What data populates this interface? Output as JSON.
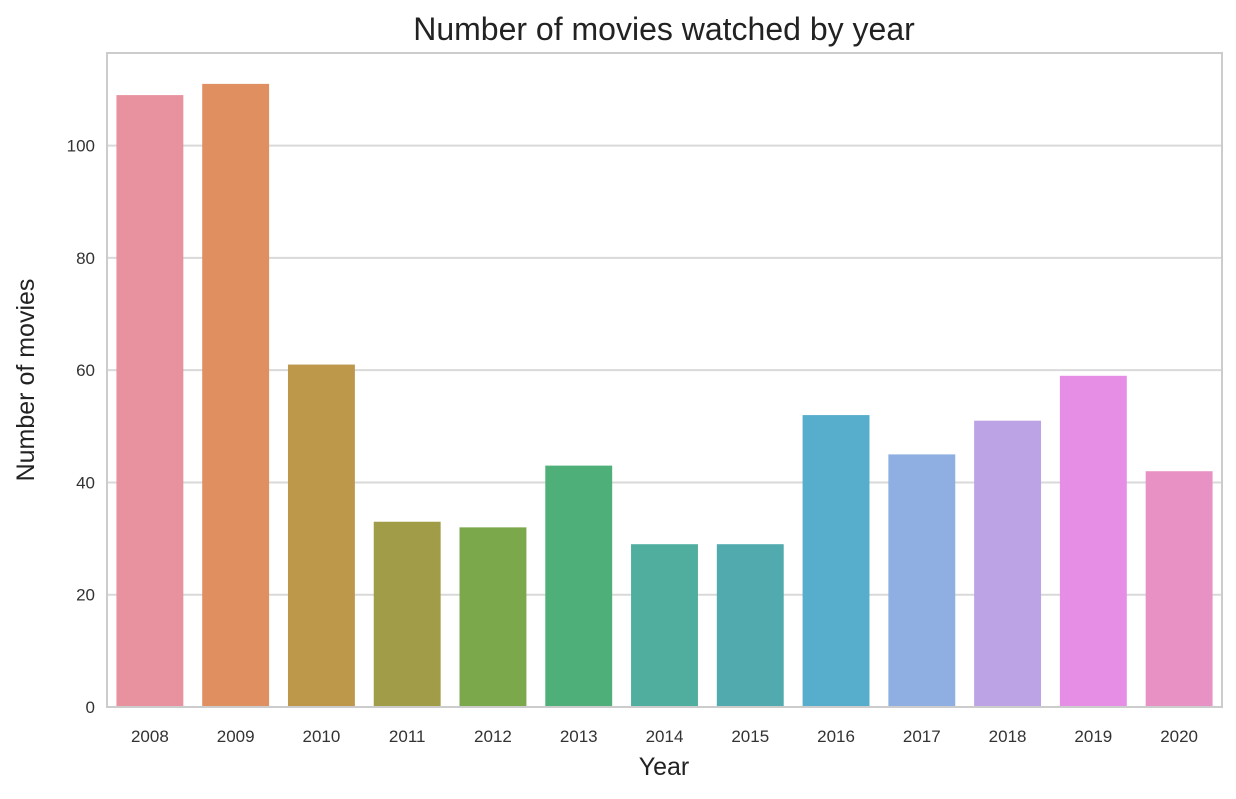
{
  "chart_data": {
    "type": "bar",
    "title": "Number of movies watched by year",
    "xlabel": "Year",
    "ylabel": "Number of movies",
    "categories": [
      "2008",
      "2009",
      "2010",
      "2011",
      "2012",
      "2013",
      "2014",
      "2015",
      "2016",
      "2017",
      "2018",
      "2019",
      "2020"
    ],
    "values": [
      109,
      111,
      61,
      33,
      32,
      43,
      29,
      29,
      52,
      45,
      51,
      59,
      42
    ],
    "colors": [
      "#e8919f",
      "#e09060",
      "#bd974a",
      "#a09c48",
      "#7aa84b",
      "#4faf78",
      "#50ae9e",
      "#50aaae",
      "#56aecc",
      "#8fafe3",
      "#bca3e6",
      "#e68de6",
      "#e891c5"
    ],
    "ylim": [
      0,
      116.5
    ],
    "yticks": [
      0,
      20,
      40,
      60,
      80,
      100
    ],
    "grid": true,
    "legend": "none"
  }
}
